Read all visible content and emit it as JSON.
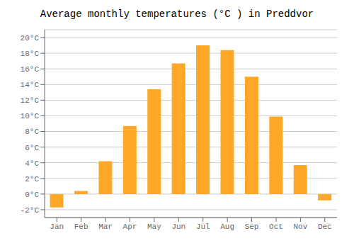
{
  "chart_data": {
    "type": "bar",
    "title": "Average monthly temperatures (°C ) in Preddvor",
    "categories": [
      "Jan",
      "Feb",
      "Mar",
      "Apr",
      "May",
      "Jun",
      "Jul",
      "Aug",
      "Sep",
      "Oct",
      "Nov",
      "Dec"
    ],
    "values": [
      -1.7,
      0.4,
      4.2,
      8.7,
      13.4,
      16.7,
      19.0,
      18.4,
      15.0,
      9.9,
      3.7,
      -0.8
    ],
    "color": "#FFA726",
    "ylim": [
      -3,
      21
    ],
    "yticks": [
      {
        "value": -2,
        "label": "-2°C"
      },
      {
        "value": 0,
        "label": "0°C"
      },
      {
        "value": 2,
        "label": "2°C"
      },
      {
        "value": 4,
        "label": "4°C"
      },
      {
        "value": 6,
        "label": "6°C"
      },
      {
        "value": 8,
        "label": "8°C"
      },
      {
        "value": 10,
        "label": "10°C"
      },
      {
        "value": 12,
        "label": "12°C"
      },
      {
        "value": 14,
        "label": "14°C"
      },
      {
        "value": 16,
        "label": "16°C"
      },
      {
        "value": 18,
        "label": "18°C"
      },
      {
        "value": 20,
        "label": "20°C"
      }
    ],
    "grid": true
  }
}
